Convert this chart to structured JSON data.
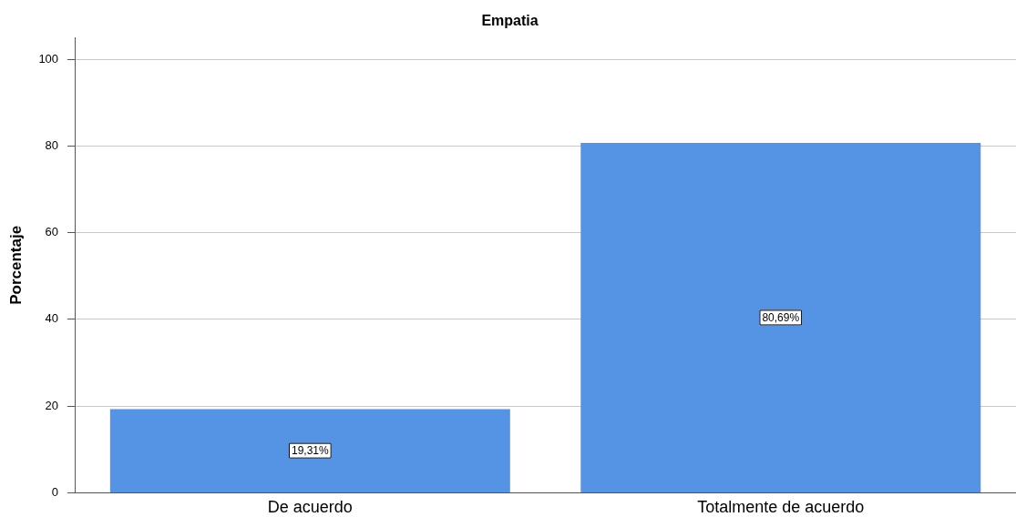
{
  "chart_data": {
    "type": "bar",
    "title": "Empatia",
    "ylabel": "Porcentaje",
    "categories": [
      "De acuerdo",
      "Totalmente de acuerdo"
    ],
    "values": [
      19.31,
      80.69
    ],
    "value_labels": [
      "19,31%",
      "80,69%"
    ],
    "color": "#5594e4",
    "ylim": [
      0,
      105
    ],
    "yticks": [
      0,
      20,
      40,
      60,
      80,
      100
    ],
    "grid": "y",
    "legend": false
  }
}
